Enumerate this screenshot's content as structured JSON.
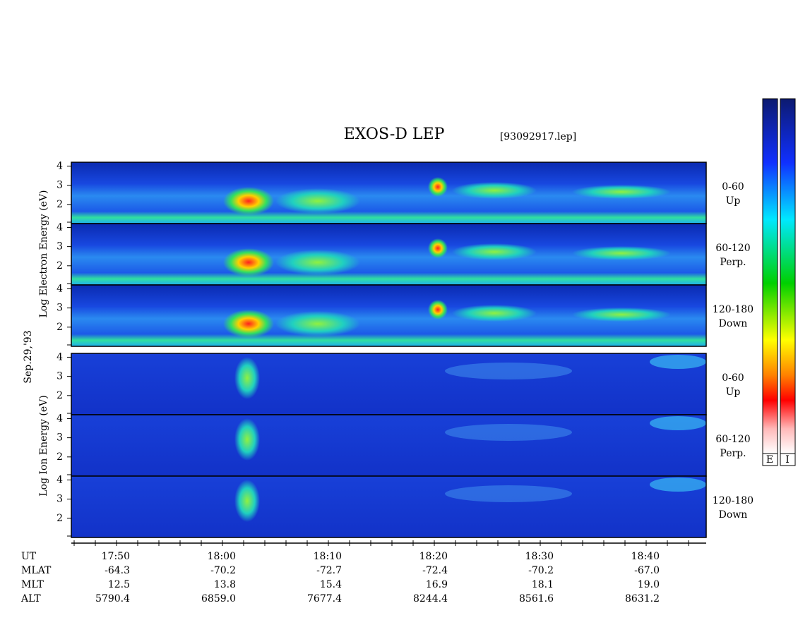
{
  "title": "EXOS-D LEP",
  "file": "[93092917.lep]",
  "date": "Sep.29,'93",
  "groups": [
    {
      "label": "Log  Electron  Energy (eV)"
    },
    {
      "label": "Log  Ion  Energy (eV)"
    }
  ],
  "pitch_angles": [
    {
      "range": "0-60",
      "direction": "Up"
    },
    {
      "range": "60-120",
      "direction": "Perp."
    },
    {
      "range": "120-180",
      "direction": "Down"
    }
  ],
  "ylim": [
    1,
    4.2
  ],
  "yticks": [
    2,
    3,
    4
  ],
  "time_axis": {
    "rows": [
      {
        "name": "UT",
        "values": [
          "17:50",
          "18:00",
          "18:10",
          "18:20",
          "18:30",
          "18:40"
        ]
      },
      {
        "name": "MLAT",
        "values": [
          "-64.3",
          "-70.2",
          "-72.7",
          "-72.4",
          "-70.2",
          "-67.0"
        ]
      },
      {
        "name": "MLT",
        "values": [
          "12.5",
          "13.8",
          "15.4",
          "16.9",
          "18.1",
          "19.0"
        ]
      },
      {
        "name": "ALT",
        "values": [
          "5790.4",
          "6859.0",
          "7677.4",
          "8244.4",
          "8561.6",
          "8631.2"
        ]
      }
    ]
  },
  "colorbars": [
    "E",
    "I"
  ]
}
